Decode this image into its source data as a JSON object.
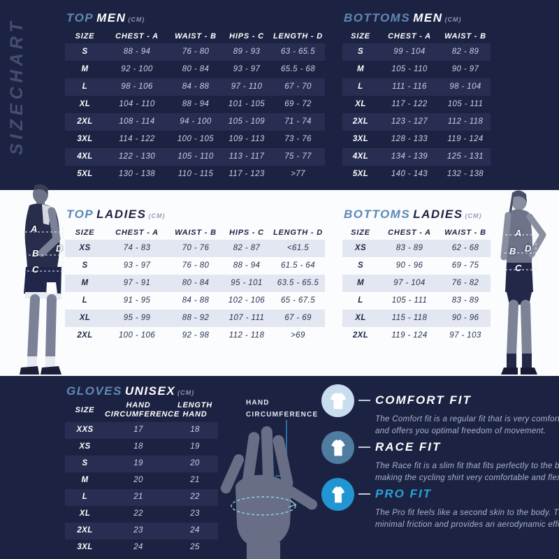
{
  "colors": {
    "background_navy": "#1c2342",
    "row_stripe_navy": "#282e51",
    "section_white": "#fbfcfe",
    "row_stripe_light": "#e2e7f1",
    "accent_steel_blue": "#6089b4",
    "accent_bright_blue": "#2ba2db"
  },
  "sidebar": {
    "vertical_label": "SIZECHART"
  },
  "tables": {
    "top_men": {
      "title_accent": "TOP",
      "title_main": "MEN",
      "title_unit": "(CM)",
      "headers": [
        "SIZE",
        "CHEST - A",
        "WAIST - B",
        "HIPS - C",
        "LENGTH - D"
      ],
      "rows": [
        [
          "S",
          "88 - 94",
          "76 - 80",
          "89 - 93",
          "63 - 65.5"
        ],
        [
          "M",
          "92 - 100",
          "80 - 84",
          "93 - 97",
          "65.5 - 68"
        ],
        [
          "L",
          "98 - 106",
          "84 - 88",
          "97 - 110",
          "67 - 70"
        ],
        [
          "XL",
          "104 - 110",
          "88 - 94",
          "101 - 105",
          "69 - 72"
        ],
        [
          "2XL",
          "108 - 114",
          "94 - 100",
          "105 - 109",
          "71 - 74"
        ],
        [
          "3XL",
          "114 - 122",
          "100 - 105",
          "109 - 113",
          "73 - 76"
        ],
        [
          "4XL",
          "122 - 130",
          "105 - 110",
          "113 - 117",
          "75 - 77"
        ],
        [
          "5XL",
          "130 - 138",
          "110 - 115",
          "117 - 123",
          ">77"
        ]
      ]
    },
    "bottoms_men": {
      "title_accent": "BOTTOMS",
      "title_main": "MEN",
      "title_unit": "(CM)",
      "headers": [
        "SIZE",
        "CHEST - A",
        "WAIST - B"
      ],
      "rows": [
        [
          "S",
          "99 - 104",
          "82 - 89"
        ],
        [
          "M",
          "105 - 110",
          "90 - 97"
        ],
        [
          "L",
          "111 - 116",
          "98 - 104"
        ],
        [
          "XL",
          "117 - 122",
          "105 - 111"
        ],
        [
          "2XL",
          "123 - 127",
          "112 - 118"
        ],
        [
          "3XL",
          "128 - 133",
          "119 - 124"
        ],
        [
          "4XL",
          "134 - 139",
          "125 - 131"
        ],
        [
          "5XL",
          "140 - 143",
          "132 - 138"
        ]
      ]
    },
    "top_ladies": {
      "title_accent": "TOP",
      "title_main": "LADIES",
      "title_unit": "(CM)",
      "headers": [
        "SIZE",
        "CHEST - A",
        "WAIST - B",
        "HIPS - C",
        "LENGTH - D"
      ],
      "rows": [
        [
          "XS",
          "74 - 83",
          "70 - 76",
          "82 - 87",
          "<61.5"
        ],
        [
          "S",
          "93 - 97",
          "76 - 80",
          "88 - 94",
          "61.5 - 64"
        ],
        [
          "M",
          "97 - 91",
          "80 - 84",
          "95 - 101",
          "63.5 - 65.5"
        ],
        [
          "L",
          "91 - 95",
          "84 - 88",
          "102 - 106",
          "65 - 67.5"
        ],
        [
          "XL",
          "95 - 99",
          "88 - 92",
          "107 - 111",
          "67 - 69"
        ],
        [
          "2XL",
          "100 - 106",
          "92 - 98",
          "112 - 118",
          ">69"
        ]
      ]
    },
    "bottoms_ladies": {
      "title_accent": "BOTTOMS",
      "title_main": "LADIES",
      "title_unit": "(CM)",
      "headers": [
        "SIZE",
        "CHEST - A",
        "WAIST - B"
      ],
      "rows": [
        [
          "XS",
          "83 - 89",
          "62 - 68"
        ],
        [
          "S",
          "90 - 96",
          "69 - 75"
        ],
        [
          "M",
          "97 - 104",
          "76 - 82"
        ],
        [
          "L",
          "105 - 111",
          "83 - 89"
        ],
        [
          "XL",
          "115 - 118",
          "90 - 96"
        ],
        [
          "2XL",
          "119 - 124",
          "97 - 103"
        ]
      ]
    },
    "gloves_unisex": {
      "title_accent": "GLOVES",
      "title_main": "UNISEX",
      "title_unit": "(CM)",
      "headers": [
        "SIZE",
        "HAND CIRCUMFERENCE",
        "LENGTH HAND"
      ],
      "rows": [
        [
          "XXS",
          "17",
          "18"
        ],
        [
          "XS",
          "18",
          "19"
        ],
        [
          "S",
          "19",
          "20"
        ],
        [
          "M",
          "20",
          "21"
        ],
        [
          "L",
          "21",
          "22"
        ],
        [
          "XL",
          "22",
          "23"
        ],
        [
          "2XL",
          "23",
          "24"
        ],
        [
          "3XL",
          "24",
          "25"
        ]
      ]
    }
  },
  "figures": {
    "male": {
      "letters": [
        "A",
        "D",
        "B",
        "C"
      ]
    },
    "female": {
      "letters": [
        "A",
        "B",
        "D",
        "C"
      ]
    },
    "hand": {
      "label_line1": "HAND",
      "label_line2": "CIRCUMFERENCE"
    }
  },
  "fits": [
    {
      "name": "COMFORT FIT",
      "icon_color": "#c9ddf0",
      "title_color": "#ffffff",
      "desc_line1": "The Comfort fit is a regular fit that is very comfortable",
      "desc_line2": "and offers you optimal freedom of movement."
    },
    {
      "name": "RACE FIT",
      "icon_color": "#4e7da1",
      "title_color": "#ffffff",
      "desc_line1": "The Race fit is a slim fit that fits perfectly to the body,",
      "desc_line2": "making the cycling shirt very comfortable and flexible."
    },
    {
      "name": "PRO FIT",
      "icon_color": "#2196d3",
      "title_color": "#2ba2db",
      "desc_line1": "The Pro fit feels like a second skin to the body. This ensures",
      "desc_line2": "minimal friction and provides an aerodynamic effect."
    }
  ]
}
